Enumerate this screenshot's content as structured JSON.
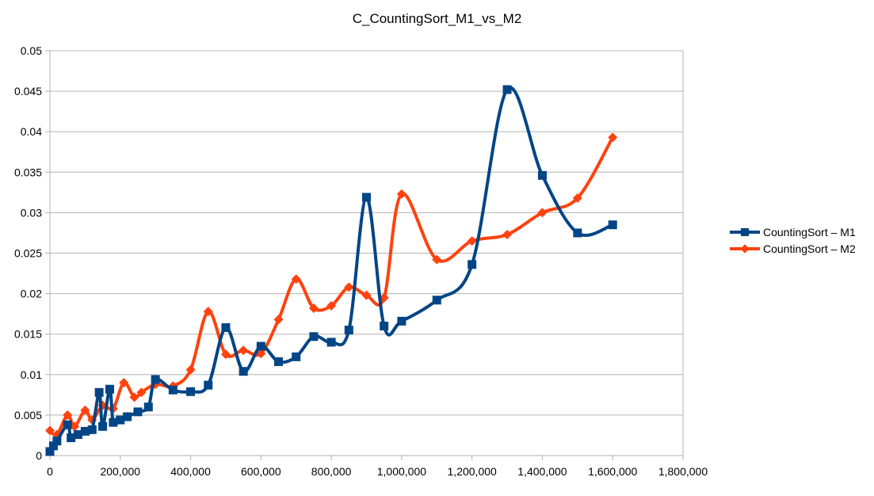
{
  "chart_data": {
    "type": "line",
    "title": "C_CountingSort_M1_vs_M2",
    "xlabel": "",
    "ylabel": "",
    "xlim": [
      0,
      1800000
    ],
    "ylim": [
      0,
      0.05
    ],
    "x_ticks": [
      "0",
      "200,000",
      "400,000",
      "600,000",
      "800,000",
      "1,000,000",
      "1,200,000",
      "1,400,000",
      "1,600,000",
      "1,800,000"
    ],
    "y_ticks": [
      "0",
      "0.005",
      "0.01",
      "0.015",
      "0.02",
      "0.025",
      "0.03",
      "0.035",
      "0.04",
      "0.045",
      "0.05"
    ],
    "grid": "horizontal",
    "legend_position": "right",
    "smoothed": true,
    "series": [
      {
        "name": "CountingSort – M1",
        "color": "#004586",
        "marker": "square",
        "points": [
          [
            0,
            0.0005
          ],
          [
            10000,
            0.0012
          ],
          [
            20000,
            0.0018
          ],
          [
            50000,
            0.0038
          ],
          [
            60000,
            0.0022
          ],
          [
            80000,
            0.0026
          ],
          [
            100000,
            0.003
          ],
          [
            120000,
            0.0032
          ],
          [
            140000,
            0.0078
          ],
          [
            150000,
            0.0036
          ],
          [
            170000,
            0.0082
          ],
          [
            180000,
            0.0041
          ],
          [
            200000,
            0.0044
          ],
          [
            220000,
            0.0048
          ],
          [
            250000,
            0.0054
          ],
          [
            280000,
            0.006
          ],
          [
            300000,
            0.0094
          ],
          [
            350000,
            0.0081
          ],
          [
            400000,
            0.0079
          ],
          [
            450000,
            0.0087
          ],
          [
            500000,
            0.0158
          ],
          [
            550000,
            0.0104
          ],
          [
            600000,
            0.0135
          ],
          [
            650000,
            0.0116
          ],
          [
            700000,
            0.0122
          ],
          [
            750000,
            0.0147
          ],
          [
            800000,
            0.014
          ],
          [
            850000,
            0.0155
          ],
          [
            900000,
            0.0319
          ],
          [
            950000,
            0.016
          ],
          [
            1000000,
            0.0166
          ],
          [
            1100000,
            0.0192
          ],
          [
            1200000,
            0.0236
          ],
          [
            1300000,
            0.0452
          ],
          [
            1400000,
            0.0346
          ],
          [
            1500000,
            0.0275
          ],
          [
            1600000,
            0.0285
          ]
        ]
      },
      {
        "name": "CountingSort – M2",
        "color": "#ff420e",
        "marker": "diamond",
        "points": [
          [
            0,
            0.0031
          ],
          [
            20000,
            0.0026
          ],
          [
            50000,
            0.005
          ],
          [
            70000,
            0.0036
          ],
          [
            100000,
            0.0056
          ],
          [
            120000,
            0.0044
          ],
          [
            150000,
            0.0062
          ],
          [
            180000,
            0.0058
          ],
          [
            210000,
            0.009
          ],
          [
            240000,
            0.0072
          ],
          [
            260000,
            0.0078
          ],
          [
            300000,
            0.0088
          ],
          [
            350000,
            0.0086
          ],
          [
            400000,
            0.0106
          ],
          [
            450000,
            0.0178
          ],
          [
            500000,
            0.0125
          ],
          [
            550000,
            0.013
          ],
          [
            600000,
            0.0126
          ],
          [
            650000,
            0.0168
          ],
          [
            700000,
            0.0218
          ],
          [
            750000,
            0.0182
          ],
          [
            800000,
            0.0185
          ],
          [
            850000,
            0.0208
          ],
          [
            900000,
            0.0198
          ],
          [
            950000,
            0.0195
          ],
          [
            1000000,
            0.0323
          ],
          [
            1100000,
            0.0242
          ],
          [
            1200000,
            0.0265
          ],
          [
            1300000,
            0.0273
          ],
          [
            1400000,
            0.03
          ],
          [
            1500000,
            0.0318
          ],
          [
            1600000,
            0.0393
          ]
        ]
      }
    ]
  },
  "legend": {
    "items": [
      {
        "label": "CountingSort – M1",
        "color": "#004586",
        "marker": "square-icon"
      },
      {
        "label": "CountingSort – M2",
        "color": "#ff420e",
        "marker": "diamond-icon"
      }
    ]
  }
}
